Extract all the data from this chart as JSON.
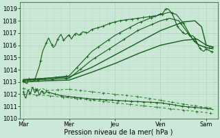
{
  "background_color": "#cce8d8",
  "plot_bg_color": "#cce8d8",
  "grid_major_color": "#aaccaa",
  "grid_minor_color": "#bbddbb",
  "line_dark": "#1a6020",
  "line_medium": "#2d7a2d",
  "ylim": [
    1010,
    1019.5
  ],
  "xlim": [
    -0.08,
    4.25
  ],
  "yticks": [
    1010,
    1011,
    1012,
    1013,
    1014,
    1015,
    1016,
    1017,
    1018,
    1019
  ],
  "xtick_positions": [
    0,
    1,
    2,
    3,
    4
  ],
  "xtick_labels": [
    "Mar",
    "Mer",
    "Jeu",
    "Ven",
    "Sam"
  ],
  "xlabel": "Pression niveau de la mer( hPa )",
  "tick_fontsize": 6,
  "label_fontsize": 7
}
